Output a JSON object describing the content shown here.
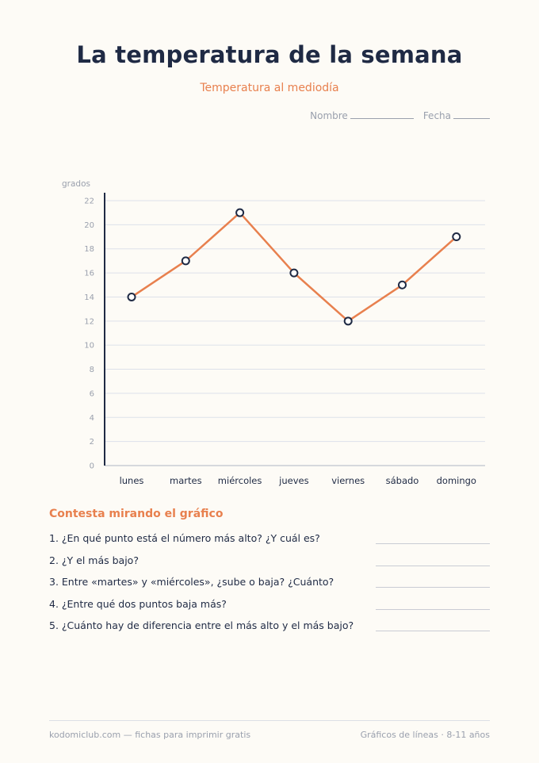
{
  "header": {
    "title": "La temperatura de la semana",
    "subtitle": "Temperatura al mediodía",
    "name_label": "Nombre",
    "date_label": "Fecha"
  },
  "chart_data": {
    "type": "line",
    "ylabel": "grados",
    "categories": [
      "lunes",
      "martes",
      "miércoles",
      "jueves",
      "viernes",
      "sábado",
      "domingo"
    ],
    "values": [
      14,
      17,
      21,
      16,
      12,
      15,
      19
    ],
    "ylim": [
      0,
      22
    ],
    "yticks": [
      0,
      2,
      4,
      6,
      8,
      10,
      12,
      14,
      16,
      18,
      20,
      22
    ],
    "grid": true,
    "line_color": "#e8804e",
    "marker_fill": "#ffffff",
    "marker_stroke": "#1f2a44"
  },
  "questions": {
    "title": "Contesta mirando el gráfico",
    "items": [
      "1. ¿En qué punto está el número más alto? ¿Y cuál es?",
      "2. ¿Y el más bajo?",
      "3. Entre «martes» y «miércoles», ¿sube o baja? ¿Cuánto?",
      "4. ¿Entre qué dos puntos baja más?",
      "5. ¿Cuánto hay de diferencia entre el más alto y el más bajo?"
    ]
  },
  "footer": {
    "left": "kodomiclub.com — fichas para imprimir gratis",
    "right": "Gráficos de líneas · 8-11 años"
  }
}
